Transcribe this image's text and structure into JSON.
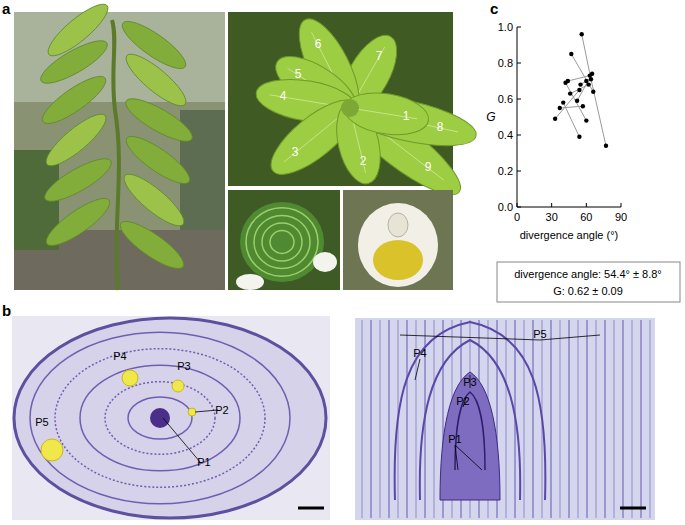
{
  "panel_labels": [
    "a",
    "b",
    "c"
  ],
  "photo_a": {
    "leaf_numbers": [
      "1",
      "2",
      "3",
      "4",
      "5",
      "6",
      "7",
      "8",
      "9"
    ]
  },
  "micrograph_b": {
    "cross_section_labels": [
      "P1",
      "P2",
      "P3",
      "P4",
      "P5"
    ],
    "longitudinal_labels": [
      "P1",
      "P2",
      "P3",
      "P4",
      "P5"
    ]
  },
  "chart_data": {
    "type": "scatter",
    "x_label": "divergence angle (°)",
    "y_label": "G",
    "xlim": [
      0,
      90
    ],
    "xticks": [
      0,
      30,
      60,
      90
    ],
    "ylim": [
      0,
      1
    ],
    "yticks": [
      {
        "value": 0,
        "label": "0.0"
      },
      {
        "value": 0.2,
        "label": "0.2"
      },
      {
        "value": 0.4,
        "label": "0.4"
      },
      {
        "value": 0.6,
        "label": "0.6"
      },
      {
        "value": 0.8,
        "label": "0.8"
      },
      {
        "value": 1,
        "label": "1.0"
      }
    ],
    "series": [
      {
        "color": "#000000",
        "marker": "circle",
        "line_style": "solid",
        "x": [
          33,
          54
        ],
        "values": [
          0.49,
          0.65
        ]
      },
      {
        "color": "#000000",
        "marker": "circle",
        "line_style": "solid",
        "x": [
          37,
          57
        ],
        "values": [
          0.55,
          0.56
        ]
      },
      {
        "color": "#000000",
        "marker": "circle",
        "line_style": "solid",
        "x": [
          47,
          66
        ],
        "values": [
          0.85,
          0.64
        ]
      },
      {
        "color": "#000000",
        "marker": "circle",
        "line_style": "solid",
        "x": [
          42,
          60
        ],
        "values": [
          0.69,
          0.48
        ]
      },
      {
        "color": "#000000",
        "marker": "circle",
        "line_style": "solid",
        "x": [
          56,
          64,
          77
        ],
        "values": [
          0.96,
          0.71,
          0.34
        ]
      },
      {
        "color": "#000000",
        "marker": "circle",
        "line_style": "solid",
        "x": [
          40,
          54
        ],
        "values": [
          0.58,
          0.39
        ]
      },
      {
        "color": "#000000",
        "marker": "circle",
        "line_style": "solid",
        "x": [
          44,
          63
        ],
        "values": [
          0.7,
          0.73
        ]
      },
      {
        "color": "#000000",
        "marker": "circle",
        "line_style": "solid",
        "x": [
          52,
          65
        ],
        "values": [
          0.59,
          0.74
        ]
      },
      {
        "color": "#000000",
        "marker": "circle",
        "line_style": "solid",
        "x": [
          46,
          62
        ],
        "values": [
          0.63,
          0.68
        ]
      },
      {
        "color": "#000000",
        "marker": "circle",
        "line_style": "solid",
        "x": [
          55,
          60
        ],
        "values": [
          0.68,
          0.7
        ]
      }
    ],
    "annotations": [
      "divergence angle: 54.4° ± 8.8°",
      "G:  0.62 ± 0.09"
    ]
  }
}
